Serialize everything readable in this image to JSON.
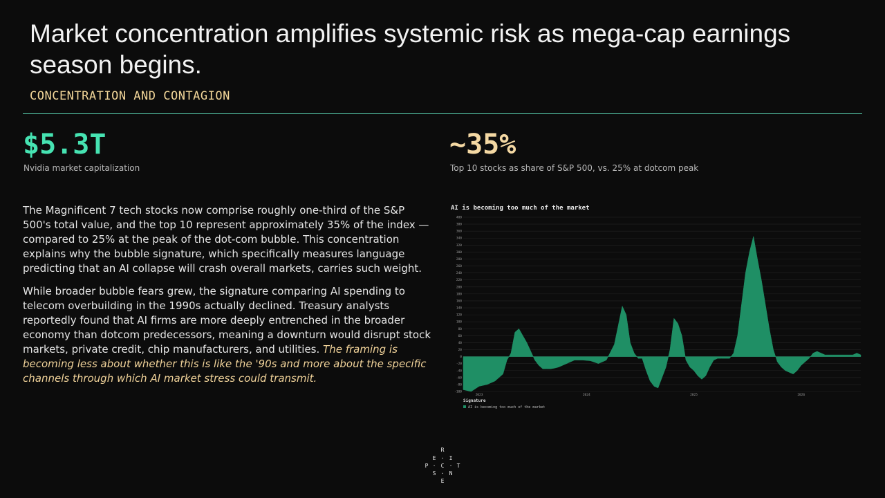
{
  "slide": {
    "title": "Market concentration amplifies systemic risk as mega-cap earnings season begins.",
    "section_label": "CONCENTRATION AND CONTAGION"
  },
  "stats": [
    {
      "value": "$5.3T",
      "label": "Nvidia market capitalization",
      "color": "#46e3b2"
    },
    {
      "value": "~35%",
      "label": "Top 10 stocks as share of S&P 500, vs. 25% at dotcom peak",
      "color": "#f4d8a3"
    }
  ],
  "body": {
    "p1": "The Magnificent 7 tech stocks now comprise roughly one-third of the S&P 500's total value, and the top 10 represent approximately 35% of the index — compared to 25% at the peak of the dot-com bubble. This concentration explains why the bubble signature, which specifically measures language predicting that an AI collapse will crash overall markets, carries such weight.",
    "p2": "While broader bubble fears grew, the signature comparing AI spending to telecom overbuilding in the 1990s actually declined. Treasury analysts reportedly found that AI firms are more deeply entrenched in the broader economy than dotcom predecessors, meaning a downturn would disrupt stock markets, private credit, chip manufacturers, and utilities.",
    "p2_em": "The framing is becoming less about whether this is like the '90s and more about the specific channels through which AI market stress could transmit."
  },
  "chart_data": {
    "type": "area",
    "title": "AI is becoming too much of the market",
    "ylim": [
      -100,
      400
    ],
    "yticks": [
      -100,
      -80,
      -60,
      -40,
      -20,
      0,
      20,
      40,
      60,
      80,
      100,
      120,
      140,
      160,
      180,
      200,
      220,
      240,
      260,
      280,
      300,
      320,
      340,
      360,
      380,
      400
    ],
    "x_tick_labels": [
      "2023",
      "2024",
      "2025",
      "2026"
    ],
    "x_tick_positions": [
      0.04,
      0.31,
      0.58,
      0.85
    ],
    "grid": true,
    "legend_title": "Signature",
    "series": [
      {
        "name": "AI is becoming too much of the market",
        "color": "#1f8f65",
        "x": [
          0.0,
          0.02,
          0.04,
          0.06,
          0.08,
          0.1,
          0.11,
          0.12,
          0.13,
          0.14,
          0.15,
          0.16,
          0.17,
          0.18,
          0.19,
          0.2,
          0.21,
          0.22,
          0.23,
          0.24,
          0.26,
          0.28,
          0.3,
          0.32,
          0.34,
          0.36,
          0.38,
          0.39,
          0.4,
          0.41,
          0.42,
          0.43,
          0.44,
          0.45,
          0.46,
          0.47,
          0.48,
          0.49,
          0.5,
          0.51,
          0.52,
          0.53,
          0.54,
          0.55,
          0.56,
          0.57,
          0.58,
          0.59,
          0.6,
          0.61,
          0.62,
          0.63,
          0.64,
          0.65,
          0.66,
          0.67,
          0.68,
          0.69,
          0.7,
          0.71,
          0.72,
          0.73,
          0.74,
          0.75,
          0.76,
          0.77,
          0.78,
          0.79,
          0.8,
          0.81,
          0.82,
          0.83,
          0.84,
          0.85,
          0.86,
          0.87,
          0.88,
          0.89,
          0.9,
          0.91,
          0.92,
          0.93,
          0.94,
          0.95,
          0.96,
          0.97,
          0.98,
          0.99,
          1.0
        ],
        "values": [
          -95,
          -100,
          -85,
          -80,
          -70,
          -50,
          -10,
          10,
          70,
          80,
          60,
          40,
          15,
          -10,
          -25,
          -35,
          -35,
          -35,
          -33,
          -30,
          -20,
          -10,
          -10,
          -12,
          -20,
          -10,
          35,
          90,
          145,
          120,
          40,
          10,
          -5,
          -5,
          -40,
          -70,
          -85,
          -90,
          -60,
          -30,
          20,
          110,
          95,
          60,
          -10,
          -30,
          -40,
          -55,
          -65,
          -55,
          -30,
          -10,
          -5,
          -5,
          -5,
          -5,
          10,
          60,
          150,
          240,
          300,
          345,
          280,
          220,
          150,
          80,
          20,
          -15,
          -30,
          -40,
          -45,
          -50,
          -40,
          -25,
          -15,
          -5,
          10,
          15,
          10,
          5,
          5,
          5,
          5,
          5,
          5,
          5,
          5,
          10,
          5
        ]
      }
    ]
  },
  "logo": {
    "letters": [
      "R",
      "E",
      "I",
      "P",
      "C",
      "T",
      "S",
      "N",
      "E"
    ]
  }
}
